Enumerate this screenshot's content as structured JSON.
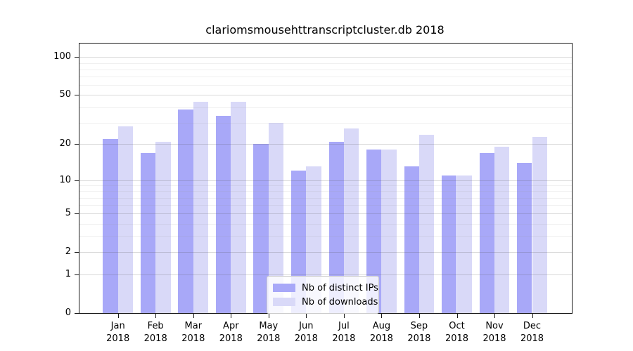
{
  "title": "clariomsmousehttranscriptcluster.db 2018",
  "chart_data": {
    "type": "bar",
    "title": "clariomsmousehttranscriptcluster.db 2018",
    "scale": "log1p",
    "categories": [
      "Jan",
      "Feb",
      "Mar",
      "Apr",
      "May",
      "Jun",
      "Jul",
      "Aug",
      "Sep",
      "Oct",
      "Nov",
      "Dec"
    ],
    "year": "2018",
    "series": [
      {
        "name": "Nb of distinct IPs",
        "color": "#a8a8f8",
        "values": [
          22,
          17,
          38,
          34,
          20,
          12,
          21,
          18,
          13,
          11,
          17,
          14
        ]
      },
      {
        "name": "Nb of downloads",
        "color": "#d9d9f8",
        "values": [
          28,
          21,
          44,
          44,
          30,
          13,
          27,
          18,
          24,
          11,
          19,
          23
        ]
      }
    ],
    "xlabel": "",
    "ylabel": "",
    "ylim": [
      0,
      127.8
    ],
    "yticks": [
      0,
      1,
      2,
      5,
      10,
      20,
      50,
      100
    ],
    "minor_yticks": [
      3,
      4,
      6,
      7,
      8,
      9,
      30,
      40,
      60,
      70,
      80,
      90
    ],
    "grid": true,
    "legend_position": "lower center"
  }
}
